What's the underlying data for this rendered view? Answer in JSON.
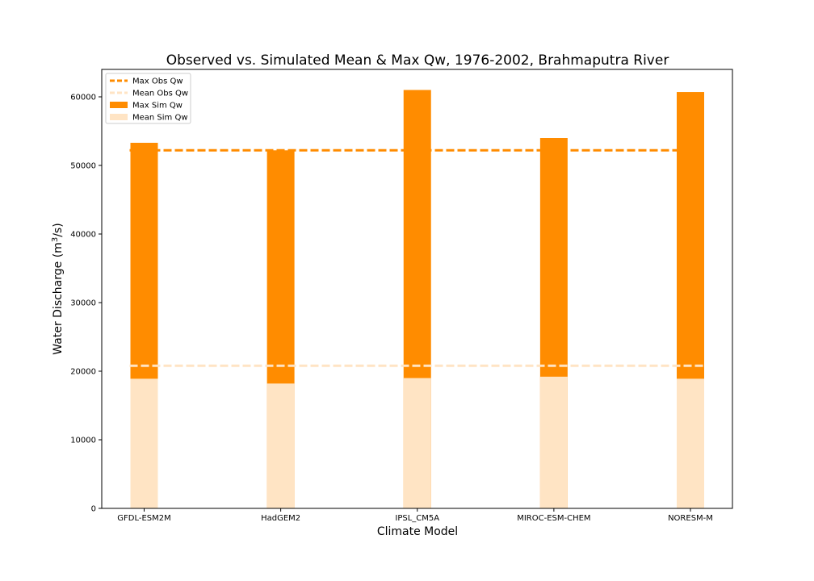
{
  "chart_data": {
    "type": "bar",
    "title": "Observed vs. Simulated Mean & Max Qw, 1976-2002, Brahmaputra River",
    "xlabel": "Climate Model",
    "ylabel_main": "Water Discharge (m",
    "ylabel_sup": "3",
    "ylabel_tail": "/s)",
    "categories": [
      "GFDL-ESM2M",
      "HadGEM2",
      "IPSL_CM5A",
      "MIROC-ESM-CHEM",
      "NORESM-M"
    ],
    "series": [
      {
        "name": "Max Sim Qw",
        "color": "#ff8c00",
        "values": [
          53300,
          52200,
          61000,
          54000,
          60700
        ]
      },
      {
        "name": "Mean Sim Qw",
        "color": "#ffe4c4",
        "values": [
          18900,
          18200,
          19000,
          19200,
          18900
        ]
      }
    ],
    "reference_lines": [
      {
        "name": "Max Obs Qw",
        "color": "#ff8c00",
        "value": 52200,
        "style": "dashed"
      },
      {
        "name": "Mean Obs Qw",
        "color": "#ffe4c4",
        "value": 20800,
        "style": "dashed"
      }
    ],
    "legend": {
      "placement": "top-left",
      "entries": [
        "Max Obs Qw",
        "Mean Obs Qw",
        "Max Sim Qw",
        "Mean Sim Qw"
      ]
    },
    "ylim": [
      0,
      64000
    ],
    "yticks": [
      0,
      10000,
      20000,
      30000,
      40000,
      50000,
      60000
    ],
    "grid": false
  }
}
